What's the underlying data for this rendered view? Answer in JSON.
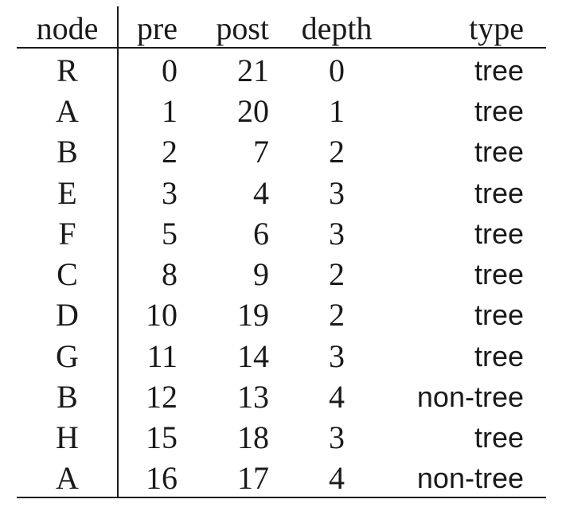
{
  "table": {
    "headers": {
      "node": "node",
      "pre": "pre",
      "post": "post",
      "depth": "depth",
      "type": "type"
    },
    "rows": [
      {
        "node": "R",
        "pre": "0",
        "post": "21",
        "depth": "0",
        "type": "tree"
      },
      {
        "node": "A",
        "pre": "1",
        "post": "20",
        "depth": "1",
        "type": "tree"
      },
      {
        "node": "B",
        "pre": "2",
        "post": "7",
        "depth": "2",
        "type": "tree"
      },
      {
        "node": "E",
        "pre": "3",
        "post": "4",
        "depth": "3",
        "type": "tree"
      },
      {
        "node": "F",
        "pre": "5",
        "post": "6",
        "depth": "3",
        "type": "tree"
      },
      {
        "node": "C",
        "pre": "8",
        "post": "9",
        "depth": "2",
        "type": "tree"
      },
      {
        "node": "D",
        "pre": "10",
        "post": "19",
        "depth": "2",
        "type": "tree"
      },
      {
        "node": "G",
        "pre": "11",
        "post": "14",
        "depth": "3",
        "type": "tree"
      },
      {
        "node": "B",
        "pre": "12",
        "post": "13",
        "depth": "4",
        "type": "non-tree"
      },
      {
        "node": "H",
        "pre": "15",
        "post": "18",
        "depth": "3",
        "type": "tree"
      },
      {
        "node": "A",
        "pre": "16",
        "post": "17",
        "depth": "4",
        "type": "non-tree"
      }
    ]
  }
}
